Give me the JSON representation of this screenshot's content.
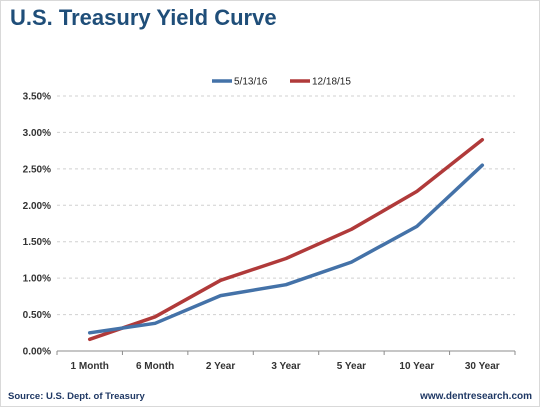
{
  "title": "U.S. Treasury Yield Curve",
  "source": "Source: U.S. Dept. of Treasury",
  "website": "www.dentresearch.com",
  "chart_data": {
    "type": "line",
    "categories": [
      "1 Month",
      "6 Month",
      "2 Year",
      "3 Year",
      "5 Year",
      "10 Year",
      "30 Year"
    ],
    "series": [
      {
        "name": "5/13/16",
        "color": "#4472a8",
        "values": [
          0.25,
          0.38,
          0.76,
          0.91,
          1.22,
          1.71,
          2.55
        ]
      },
      {
        "name": "12/18/15",
        "color": "#b03a3a",
        "values": [
          0.16,
          0.47,
          0.97,
          1.27,
          1.67,
          2.19,
          2.9
        ]
      }
    ],
    "ylim": [
      0,
      3.5
    ],
    "ytick_labels": [
      "0.00%",
      "0.50%",
      "1.00%",
      "1.50%",
      "2.00%",
      "2.50%",
      "3.00%",
      "3.50%"
    ],
    "ytick_values": [
      0,
      0.5,
      1.0,
      1.5,
      2.0,
      2.5,
      3.0,
      3.5
    ],
    "grid": "horizontal dashed",
    "legend_position": "top-center"
  }
}
